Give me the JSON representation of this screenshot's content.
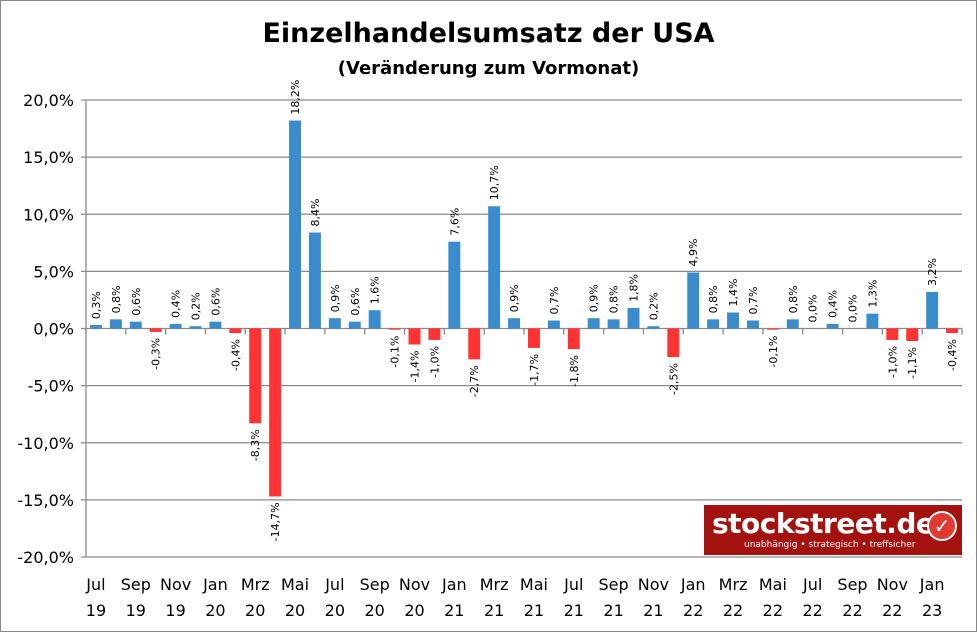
{
  "chart_data": {
    "type": "bar",
    "title": "Einzelhandelsumsatz der USA",
    "subtitle": "(Veränderung zum Vormonat)",
    "ylim": [
      -20,
      20
    ],
    "yticks": [
      "20,0%",
      "15,0%",
      "10,0%",
      "5,0%",
      "0,0%",
      "-5,0%",
      "-10,0%",
      "-15,0%",
      "-20,0%"
    ],
    "ytick_values": [
      20,
      15,
      10,
      5,
      0,
      -5,
      -10,
      -15,
      -20
    ],
    "grid": true,
    "colors": {
      "positive": "#3a8ccc",
      "negative": "#ff3333"
    },
    "x_tick_labels": [
      [
        "Jul",
        "19"
      ],
      [
        "Sep",
        "19"
      ],
      [
        "Nov",
        "19"
      ],
      [
        "Jan",
        "20"
      ],
      [
        "Mrz",
        "20"
      ],
      [
        "Mai",
        "20"
      ],
      [
        "Jul",
        "20"
      ],
      [
        "Sep",
        "20"
      ],
      [
        "Nov",
        "20"
      ],
      [
        "Jan",
        "21"
      ],
      [
        "Mrz",
        "21"
      ],
      [
        "Mai",
        "21"
      ],
      [
        "Jul",
        "21"
      ],
      [
        "Sep",
        "21"
      ],
      [
        "Nov",
        "21"
      ],
      [
        "Jan",
        "22"
      ],
      [
        "Mrz",
        "22"
      ],
      [
        "Mai",
        "22"
      ],
      [
        "Jul",
        "22"
      ],
      [
        "Sep",
        "22"
      ],
      [
        "Nov",
        "22"
      ],
      [
        "Jan",
        "23"
      ]
    ],
    "categories": [
      "Jul 19",
      "Aug 19",
      "Sep 19",
      "Okt 19",
      "Nov 19",
      "Dez 19",
      "Jan 20",
      "Feb 20",
      "Mrz 20",
      "Apr 20",
      "Mai 20",
      "Jun 20",
      "Jul 20",
      "Aug 20",
      "Sep 20",
      "Okt 20",
      "Nov 20",
      "Dez 20",
      "Jan 21",
      "Feb 21",
      "Mrz 21",
      "Apr 21",
      "Mai 21",
      "Jun 21",
      "Jul 21",
      "Aug 21",
      "Sep 21",
      "Okt 21",
      "Nov 21",
      "Dez 21",
      "Jan 22",
      "Feb 22",
      "Mrz 22",
      "Apr 22",
      "Mai 22",
      "Jun 22",
      "Jul 22",
      "Aug 22",
      "Sep 22",
      "Okt 22",
      "Nov 22",
      "Dez 22",
      "Jan 23",
      "Feb 23"
    ],
    "values": [
      0.3,
      0.8,
      0.6,
      -0.3,
      0.4,
      0.2,
      0.6,
      -0.4,
      -8.3,
      -14.7,
      18.2,
      8.4,
      0.9,
      0.6,
      1.6,
      -0.1,
      -1.4,
      -1.0,
      7.6,
      -2.7,
      10.7,
      0.9,
      -1.7,
      0.7,
      -1.8,
      0.9,
      0.8,
      1.8,
      0.2,
      -2.5,
      4.9,
      0.8,
      1.4,
      0.7,
      -0.1,
      0.8,
      0.0,
      0.4,
      0.0,
      1.3,
      -1.0,
      -1.1,
      3.2,
      -0.4
    ],
    "data_labels": [
      "0,3%",
      "0,8%",
      "0,6%",
      "-0,3%",
      "0,4%",
      "0,2%",
      "0,6%",
      "-0,4%",
      "-8,3%",
      "-14,7%",
      "18,2%",
      "8,4%",
      "0,9%",
      "0,6%",
      "1,6%",
      "-0,1%",
      "-1,4%",
      "-1,0%",
      "7,6%",
      "-2,7%",
      "10,7%",
      "0,9%",
      "-1,7%",
      "0,7%",
      "-1,8%",
      "0,9%",
      "0,8%",
      "1,8%",
      "0,2%",
      "-2,5%",
      "4,9%",
      "0,8%",
      "1,4%",
      "0,7%",
      "-0,1%",
      "0,8%",
      "0,0%",
      "0,4%",
      "0,0%",
      "1,3%",
      "-1,0%",
      "-1,1%",
      "3,2%",
      "-0,4%"
    ]
  },
  "logo": {
    "text": "stockstreet.de",
    "tagline": "unabhängig • strategisch • treffsicher"
  }
}
